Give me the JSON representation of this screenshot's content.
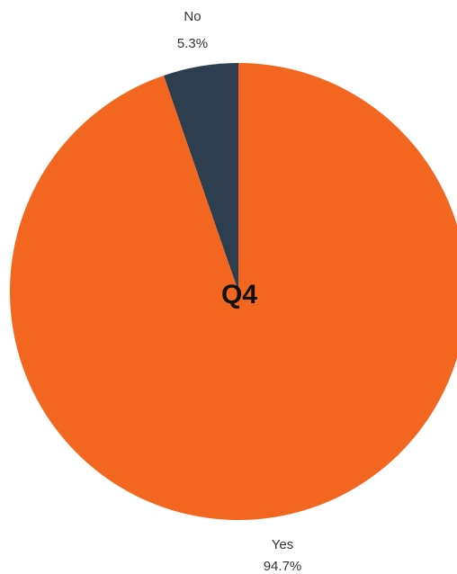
{
  "chart_data": {
    "type": "pie",
    "title": "",
    "center_label": "Q4",
    "slices": [
      {
        "label": "No",
        "value": 5.3,
        "percent_label": "5.3%",
        "color": "#2d3e4f"
      },
      {
        "label": "Yes",
        "value": 94.7,
        "percent_label": "94.7%",
        "color": "#f2661f"
      }
    ],
    "start_angle_deg": 0,
    "direction": "counterclockwise",
    "legend": "none"
  }
}
